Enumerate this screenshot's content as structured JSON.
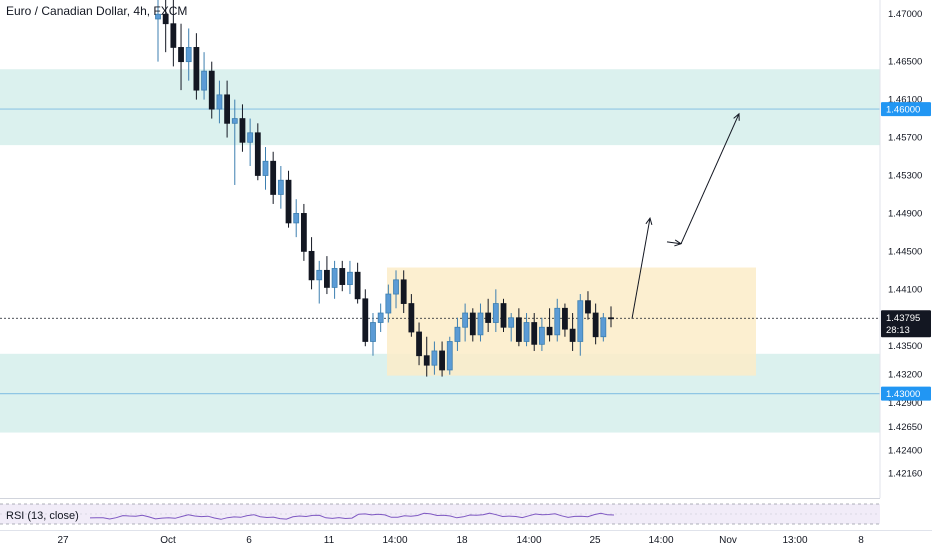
{
  "header": {
    "title": "Euro / Canadian Dollar, 4h, FXCM"
  },
  "price_axis": {
    "ticks": [
      "1.47000",
      "1.46500",
      "1.46100",
      "1.45700",
      "1.45300",
      "1.44900",
      "1.44500",
      "1.44100",
      "1.43500",
      "1.43200",
      "1.42900",
      "1.42650",
      "1.42400",
      "1.42160"
    ],
    "badges": [
      {
        "label": "1.46000",
        "value": 1.46,
        "color": "#2196f3"
      },
      {
        "label": "1.43000",
        "value": 1.43,
        "color": "#2196f3"
      }
    ],
    "current": {
      "label": "1.43795",
      "countdown": "28:13",
      "value": 1.43795,
      "color": "#131722"
    }
  },
  "time_axis": {
    "labels": [
      "27",
      "Oct",
      "6",
      "11",
      "14:00",
      "18",
      "14:00",
      "25",
      "14:00",
      "Nov",
      "13:00",
      "8"
    ]
  },
  "rsi": {
    "label": "RSI (13, close)",
    "color": "#7e57c2",
    "band_color": "#ede7f6"
  },
  "colors": {
    "up": "#3d7fb0",
    "down": "#131722",
    "zone": "#cfece8",
    "range_box": "#fbecc8",
    "level_line": "#8fc6e4"
  },
  "chart_data": {
    "type": "candlestick",
    "symbol": "Euro / Canadian Dollar",
    "timeframe": "4h",
    "source": "FXCM",
    "ylim": [
      1.419,
      1.4715
    ],
    "levels": [
      1.46,
      1.43
    ],
    "zones": [
      {
        "top": 1.4642,
        "bottom": 1.4562
      },
      {
        "top": 1.4342,
        "bottom": 1.4259
      }
    ],
    "range_box": {
      "top": 1.4433,
      "bottom": 1.4319
    },
    "projection": [
      1.4379,
      1.4485,
      1.446,
      1.4458,
      1.4595
    ],
    "candles": [
      [
        1.4695,
        1.4735,
        1.465,
        1.47
      ],
      [
        1.47,
        1.4745,
        1.466,
        1.469
      ],
      [
        1.469,
        1.473,
        1.4645,
        1.4665
      ],
      [
        1.4665,
        1.469,
        1.462,
        1.465
      ],
      [
        1.465,
        1.4685,
        1.463,
        1.4665
      ],
      [
        1.4665,
        1.468,
        1.461,
        1.462
      ],
      [
        1.462,
        1.466,
        1.461,
        1.464
      ],
      [
        1.464,
        1.465,
        1.459,
        1.46
      ],
      [
        1.46,
        1.463,
        1.4585,
        1.4615
      ],
      [
        1.4615,
        1.463,
        1.457,
        1.4585
      ],
      [
        1.4585,
        1.461,
        1.452,
        1.459
      ],
      [
        1.459,
        1.4605,
        1.4555,
        1.4565
      ],
      [
        1.4565,
        1.459,
        1.454,
        1.4575
      ],
      [
        1.4575,
        1.4585,
        1.4525,
        1.453
      ],
      [
        1.453,
        1.456,
        1.4515,
        1.4545
      ],
      [
        1.4545,
        1.4555,
        1.45,
        1.451
      ],
      [
        1.451,
        1.454,
        1.4495,
        1.4525
      ],
      [
        1.4525,
        1.4535,
        1.4475,
        1.448
      ],
      [
        1.448,
        1.4505,
        1.4465,
        1.449
      ],
      [
        1.449,
        1.45,
        1.444,
        1.445
      ],
      [
        1.445,
        1.4465,
        1.441,
        1.442
      ],
      [
        1.442,
        1.444,
        1.4395,
        1.443
      ],
      [
        1.443,
        1.4445,
        1.4405,
        1.4412
      ],
      [
        1.4412,
        1.444,
        1.44,
        1.4432
      ],
      [
        1.4432,
        1.444,
        1.4408,
        1.4415
      ],
      [
        1.4415,
        1.444,
        1.4405,
        1.4428
      ],
      [
        1.4428,
        1.4438,
        1.4395,
        1.44
      ],
      [
        1.44,
        1.441,
        1.435,
        1.4355
      ],
      [
        1.4355,
        1.4385,
        1.434,
        1.4375
      ],
      [
        1.4375,
        1.4395,
        1.4365,
        1.4385
      ],
      [
        1.4385,
        1.4415,
        1.4375,
        1.4405
      ],
      [
        1.4405,
        1.443,
        1.439,
        1.442
      ],
      [
        1.442,
        1.443,
        1.4385,
        1.4395
      ],
      [
        1.4395,
        1.4405,
        1.436,
        1.4365
      ],
      [
        1.4365,
        1.4375,
        1.433,
        1.434
      ],
      [
        1.434,
        1.436,
        1.4318,
        1.433
      ],
      [
        1.433,
        1.4355,
        1.432,
        1.4345
      ],
      [
        1.4345,
        1.4355,
        1.4318,
        1.4325
      ],
      [
        1.4325,
        1.436,
        1.432,
        1.4355
      ],
      [
        1.4355,
        1.438,
        1.4345,
        1.437
      ],
      [
        1.437,
        1.4395,
        1.4355,
        1.4385
      ],
      [
        1.4385,
        1.439,
        1.4355,
        1.4362
      ],
      [
        1.4362,
        1.4395,
        1.4355,
        1.4385
      ],
      [
        1.4385,
        1.44,
        1.4365,
        1.4375
      ],
      [
        1.4375,
        1.441,
        1.4365,
        1.4395
      ],
      [
        1.4395,
        1.44,
        1.4365,
        1.437
      ],
      [
        1.437,
        1.4385,
        1.4355,
        1.438
      ],
      [
        1.438,
        1.439,
        1.435,
        1.4355
      ],
      [
        1.4355,
        1.4385,
        1.435,
        1.4375
      ],
      [
        1.4375,
        1.4385,
        1.4345,
        1.4352
      ],
      [
        1.4352,
        1.438,
        1.4345,
        1.437
      ],
      [
        1.437,
        1.439,
        1.4355,
        1.4362
      ],
      [
        1.4362,
        1.44,
        1.4355,
        1.439
      ],
      [
        1.439,
        1.4395,
        1.436,
        1.4368
      ],
      [
        1.4368,
        1.4385,
        1.4345,
        1.4355
      ],
      [
        1.4355,
        1.4405,
        1.434,
        1.4398
      ],
      [
        1.4398,
        1.4408,
        1.4378,
        1.4385
      ],
      [
        1.4385,
        1.4395,
        1.4352,
        1.436
      ],
      [
        1.436,
        1.4385,
        1.4355,
        1.438
      ],
      [
        1.438,
        1.4392,
        1.437,
        1.4379
      ]
    ]
  }
}
